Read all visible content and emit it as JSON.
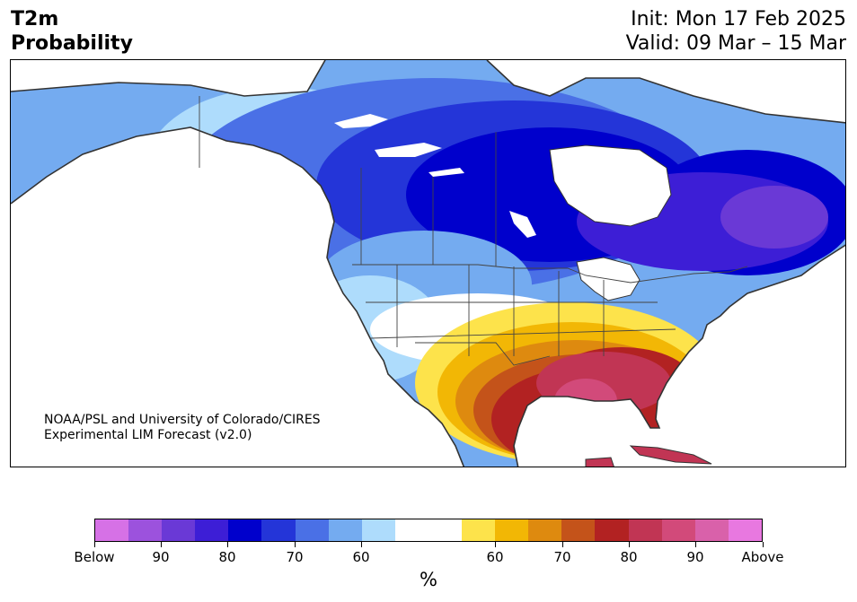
{
  "title": {
    "left_line1": "T2m",
    "left_line2": "Probability",
    "init": "Init: Mon 17 Feb 2025",
    "valid": "Valid: 09 Mar – 15 Mar"
  },
  "credit": {
    "line1": "NOAA/PSL and University of Colorado/CIRES",
    "line2": "Experimental LIM Forecast (v2.0)"
  },
  "colorbar": {
    "unit": "%",
    "tick_labels": [
      "Below",
      "90",
      "80",
      "70",
      "60",
      "60",
      "70",
      "80",
      "90",
      "Above"
    ],
    "colors": [
      "#d671e6",
      "#9c52dd",
      "#6a39d6",
      "#3d1ed6",
      "#0000cc",
      "#2435d8",
      "#4a70e6",
      "#74abf0",
      "#aedcfc",
      "#ffffff",
      "#ffffff",
      "#fde34b",
      "#f2b705",
      "#de8a0f",
      "#c4531a",
      "#b22222",
      "#c13554",
      "#d24a7a",
      "#d961aa",
      "#e878e0"
    ]
  },
  "colors": {
    "ocean": "#ffffff",
    "coast": "#333333",
    "border": "#444444"
  }
}
